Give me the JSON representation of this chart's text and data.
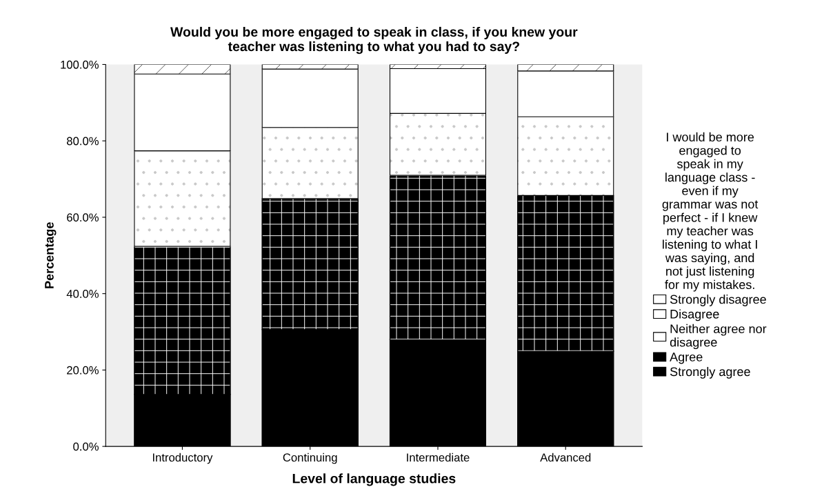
{
  "chart_data": {
    "type": "bar",
    "stacked": true,
    "title": "Would you be more engaged to speak in class, if you knew your\nteacher was listening to what you had to say?",
    "xlabel": "Level of language studies",
    "ylabel": "Percentage",
    "legend_title": "I would be more\nengaged to\nspeak in my\nlanguage class -\neven if my\ngrammar was not\nperfect - if I knew\nmy teacher was\nlistening to what I\nwas saying, and\nnot just listening\nfor my mistakes.",
    "categories": [
      "Introductory",
      "Continuing",
      "Intermediate",
      "Advanced"
    ],
    "series": [
      {
        "name": "Strongly agree",
        "color": "#000000",
        "values": [
          13.6,
          30.6,
          27.9,
          24.9
        ]
      },
      {
        "name": "Agree",
        "color": "#000000",
        "values": [
          38.8,
          34.3,
          43.1,
          40.8
        ]
      },
      {
        "name": "Neither agree nor\ndisagree",
        "color": "#ffffff",
        "values": [
          25.0,
          18.6,
          16.2,
          20.6
        ]
      },
      {
        "name": "Disagree",
        "color": "#ffffff",
        "values": [
          20.1,
          15.3,
          11.7,
          12.0
        ]
      },
      {
        "name": "Strongly disagree",
        "color": "#ffffff",
        "values": [
          2.5,
          1.2,
          1.1,
          1.7
        ]
      }
    ],
    "ylim": [
      0,
      100
    ],
    "yticks": [
      {
        "value": 0,
        "label": "0.0%"
      },
      {
        "value": 20,
        "label": "20.0%"
      },
      {
        "value": 40,
        "label": "40.0%"
      },
      {
        "value": 60,
        "label": "60.0%"
      },
      {
        "value": 80,
        "label": "80.0%"
      },
      {
        "value": 100,
        "label": "100.0%"
      }
    ],
    "grid": false,
    "legend": "right"
  }
}
